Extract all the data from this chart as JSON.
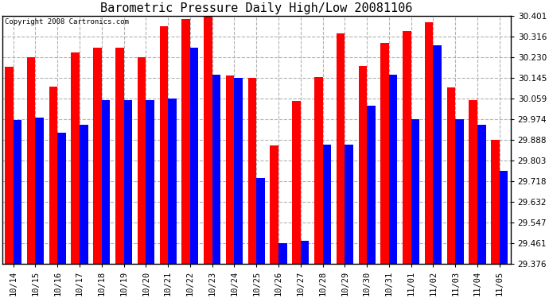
{
  "title": "Barometric Pressure Daily High/Low 20081106",
  "copyright": "Copyright 2008 Cartronics.com",
  "dates": [
    "10/14",
    "10/15",
    "10/16",
    "10/17",
    "10/18",
    "10/19",
    "10/20",
    "10/21",
    "10/22",
    "10/23",
    "10/24",
    "10/25",
    "10/26",
    "10/27",
    "10/28",
    "10/29",
    "10/30",
    "10/31",
    "11/01",
    "11/02",
    "11/03",
    "11/04",
    "11/05"
  ],
  "highs": [
    30.19,
    30.23,
    30.11,
    30.25,
    30.27,
    30.27,
    30.23,
    30.36,
    30.39,
    30.401,
    30.155,
    30.145,
    29.865,
    30.05,
    30.148,
    30.33,
    30.195,
    30.29,
    30.34,
    30.375,
    30.106,
    30.055,
    29.888
  ],
  "lows": [
    29.97,
    29.98,
    29.92,
    29.95,
    30.055,
    30.055,
    30.055,
    30.06,
    30.27,
    30.16,
    30.145,
    29.73,
    29.461,
    29.47,
    29.87,
    29.87,
    30.03,
    30.16,
    29.975,
    30.28,
    29.975,
    29.95,
    29.76
  ],
  "ymin": 29.376,
  "ymax": 30.401,
  "yticks": [
    29.376,
    29.461,
    29.547,
    29.632,
    29.718,
    29.803,
    29.888,
    29.974,
    30.059,
    30.145,
    30.23,
    30.316,
    30.401
  ],
  "high_color": "#FF0000",
  "low_color": "#0000FF",
  "bg_color": "#FFFFFF",
  "grid_color": "#AAAAAA",
  "title_fontsize": 11,
  "tick_fontsize": 7.5,
  "copyright_fontsize": 6.5
}
